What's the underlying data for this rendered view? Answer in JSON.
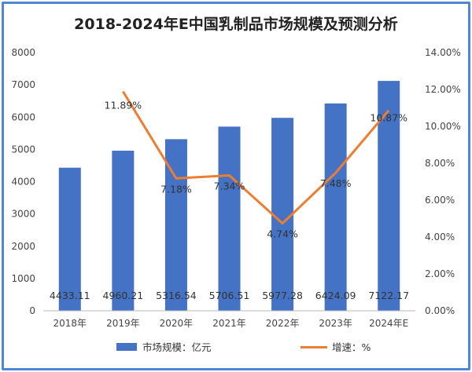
{
  "chart_data": {
    "type": "bar+line",
    "title": "2018-2024年E中国乳制品市场规模及预测分析",
    "categories": [
      "2018年",
      "2019年",
      "2020年",
      "2021年",
      "2022年",
      "2023年",
      "2024年E"
    ],
    "series": [
      {
        "name": "市场规模：亿元",
        "type": "bar",
        "axis": "left",
        "color": "#4472c4",
        "values": [
          4433.11,
          4960.21,
          5316.54,
          5706.51,
          5977.28,
          6424.09,
          7122.17
        ],
        "labels": [
          "4433.11",
          "4960.21",
          "5316.54",
          "5706.51",
          "5977.28",
          "6424.09",
          "7122.17"
        ]
      },
      {
        "name": "增速：%",
        "type": "line",
        "axis": "right",
        "color": "#ed7d31",
        "values": [
          null,
          11.89,
          7.18,
          7.34,
          4.74,
          7.48,
          10.87
        ],
        "labels": [
          "",
          "11.89%",
          "7.18%",
          "7.34%",
          "4.74%",
          "7.48%",
          "10.87%"
        ]
      }
    ],
    "left_axis": {
      "ylim": [
        0,
        8000
      ],
      "ticks": [
        "0",
        "1000",
        "2000",
        "3000",
        "4000",
        "5000",
        "6000",
        "7000",
        "8000"
      ]
    },
    "right_axis": {
      "ylim": [
        0,
        14
      ],
      "ticks": [
        "0.00%",
        "2.00%",
        "4.00%",
        "6.00%",
        "8.00%",
        "10.00%",
        "12.00%",
        "14.00%"
      ]
    },
    "grid": false,
    "legend": "bottom"
  }
}
